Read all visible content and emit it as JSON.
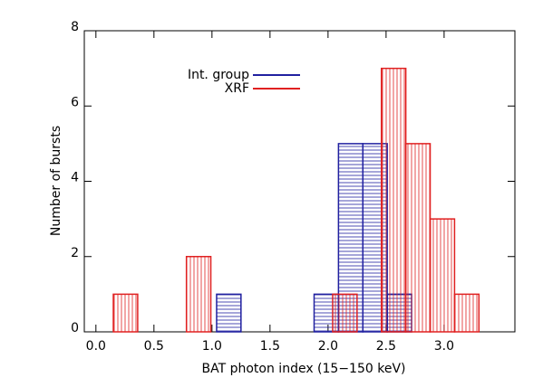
{
  "chart_data": {
    "type": "histogram",
    "xlabel": "BAT photon index (15−150 keV)",
    "ylabel": "Number of bursts",
    "series": [
      {
        "name": "Int. group",
        "color": "#2020a0",
        "bins": [
          1.04,
          1.25,
          1.46,
          1.67,
          1.88,
          2.09,
          2.3,
          2.51,
          2.72
        ],
        "values": [
          1,
          0,
          0,
          0,
          1,
          5,
          5,
          1
        ]
      },
      {
        "name": "XRF",
        "color": "#e02020",
        "bins": [
          0.15,
          0.36,
          0.57,
          0.78,
          0.99,
          1.2,
          1.41,
          1.62,
          1.83,
          2.04,
          2.25,
          2.46,
          2.67,
          2.88,
          3.09,
          3.3
        ],
        "values": [
          1,
          0,
          0,
          2,
          0,
          0,
          0,
          0,
          0,
          1,
          0,
          7,
          5,
          3,
          1
        ]
      }
    ],
    "xlim": [
      -0.1,
      3.61
    ],
    "xticks": [
      {
        "value": 0,
        "label": "0.0"
      },
      0.5,
      {
        "value": 1,
        "label": "1.0"
      },
      1.5,
      {
        "value": 2,
        "label": "2.0"
      },
      2.5,
      {
        "value": 3,
        "label": "3.0"
      }
    ],
    "ylim": [
      0,
      8
    ],
    "yticks": [
      0,
      2,
      4,
      6,
      8
    ]
  }
}
